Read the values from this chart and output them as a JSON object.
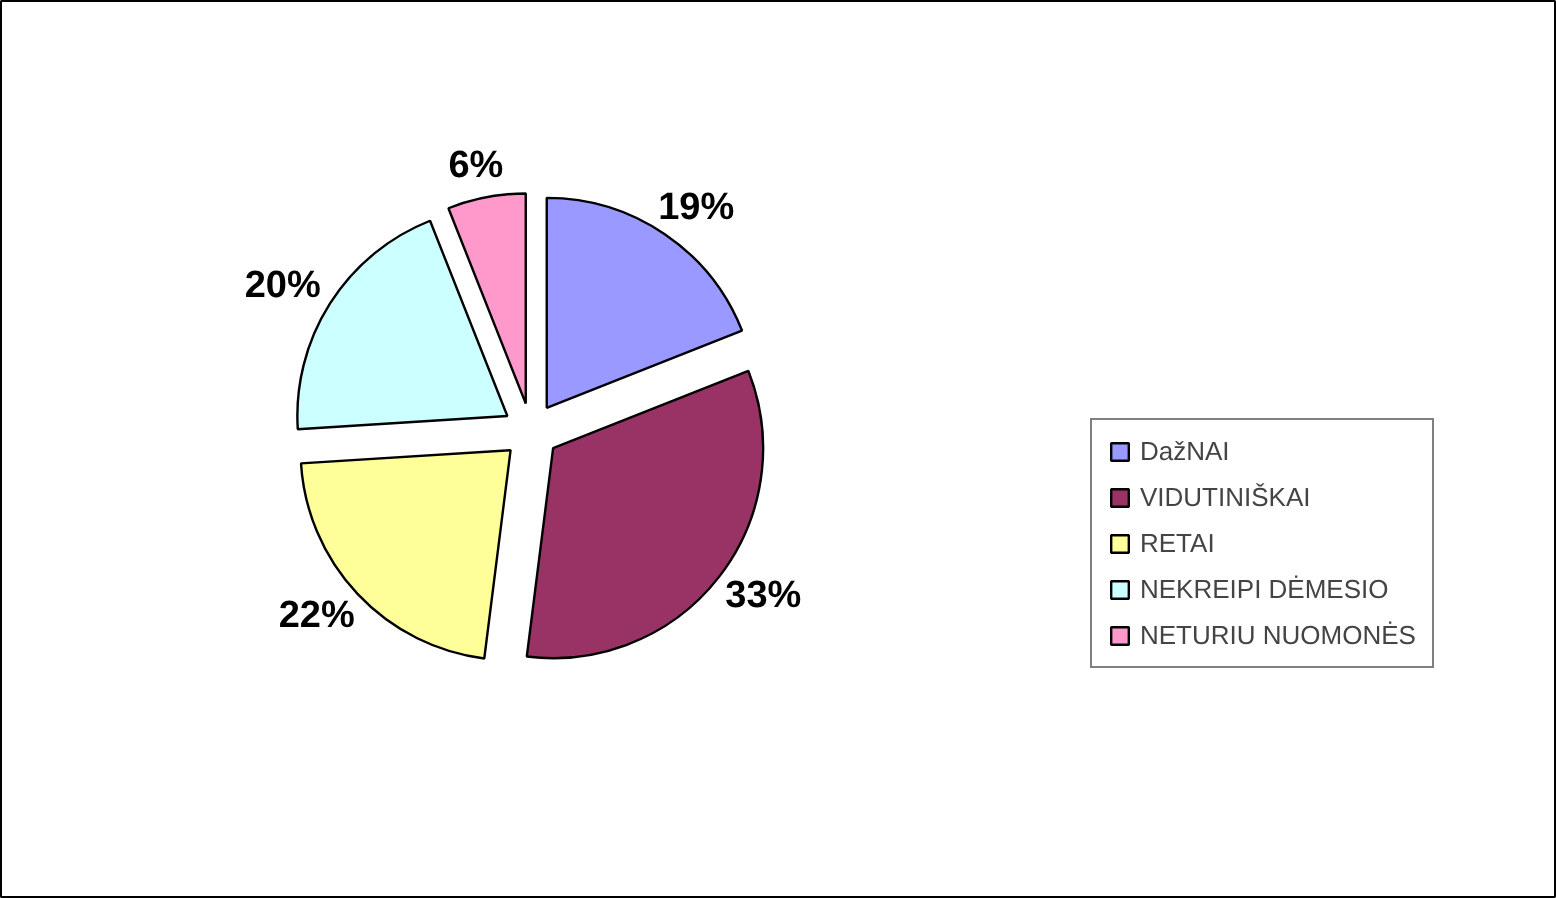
{
  "chart_data": {
    "type": "pie",
    "categories": [
      "DažNAI",
      "VIDUTINIŠKAI",
      "RETAI",
      "NEKREIPI DĖMESIO",
      "NETURIU NUOMONĖS"
    ],
    "values": [
      19,
      33,
      22,
      20,
      6
    ],
    "colors": [
      "#9999ff",
      "#993366",
      "#ffff99",
      "#ccffff",
      "#ff99cc"
    ],
    "value_labels": [
      "19%",
      "33%",
      "22%",
      "20%",
      "6%"
    ],
    "legend": "right"
  }
}
